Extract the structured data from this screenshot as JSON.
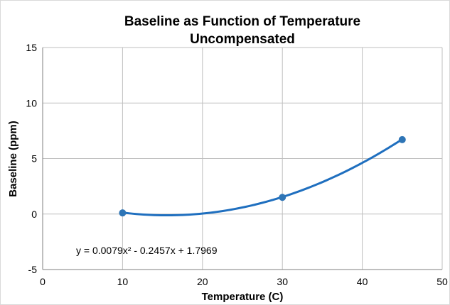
{
  "chart_data": {
    "type": "scatter",
    "title": "Baseline as Function of Temperature",
    "subtitle": "Uncompensated",
    "xlabel": "Temperature  (C)",
    "ylabel": "Baseline (ppm)",
    "xlim": [
      0,
      50
    ],
    "ylim": [
      -5,
      15
    ],
    "x_ticks": [
      0,
      10,
      20,
      30,
      40,
      50
    ],
    "y_ticks": [
      -5,
      0,
      5,
      10,
      15
    ],
    "grid": true,
    "legend": "none",
    "colors": {
      "series": "#2e75b6",
      "trendline": "#1f6fbf",
      "grid": "#bfbfbf",
      "axis": "#7f7f7f"
    },
    "series": [
      {
        "points": [
          {
            "x": 10,
            "y": 0.1
          },
          {
            "x": 30,
            "y": 1.5
          },
          {
            "x": 45,
            "y": 6.7
          }
        ]
      }
    ],
    "trendline": {
      "type": "polynomial",
      "coefficients": [
        0.0079,
        -0.2457,
        1.7969
      ],
      "x_range": [
        10,
        45
      ],
      "equation_label": "y = 0.0079x² - 0.2457x + 1.7969"
    }
  }
}
